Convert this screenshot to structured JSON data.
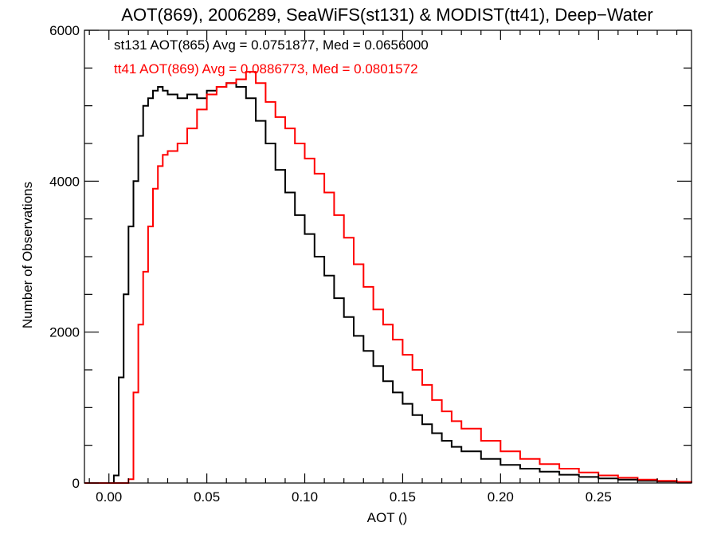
{
  "chart_data": {
    "type": "line",
    "title": "AOT(869), 2006289, SeaWiFS(st131) & MODIST(tt41), Deep−Water",
    "xlabel": "AOT ()",
    "ylabel": "Number of Observations",
    "xlim": [
      -0.0125,
      0.2975
    ],
    "ylim": [
      0,
      6000
    ],
    "x_ticks": [
      0.0,
      0.05,
      0.1,
      0.15,
      0.2,
      0.25
    ],
    "x_tick_labels": [
      "0.00",
      "0.05",
      "0.10",
      "0.15",
      "0.20",
      "0.25"
    ],
    "y_ticks": [
      0,
      2000,
      4000,
      6000
    ],
    "y_tick_labels": [
      "0",
      "2000",
      "4000",
      "6000"
    ],
    "grid": false,
    "step": true,
    "annotations": [
      {
        "text": "st131 AOT(865) Avg = 0.0751877, Med = 0.0656000",
        "color": "#000000"
      },
      {
        "text": "tt41 AOT(869) Avg = 0.0886773, Med = 0.0801572",
        "color": "#ff0000"
      }
    ],
    "series": [
      {
        "color": "#000000",
        "x": [
          -0.0125,
          0.0,
          0.0025,
          0.005,
          0.0075,
          0.01,
          0.0125,
          0.015,
          0.0175,
          0.02,
          0.0225,
          0.025,
          0.0275,
          0.03,
          0.035,
          0.04,
          0.045,
          0.05,
          0.055,
          0.06,
          0.065,
          0.07,
          0.075,
          0.08,
          0.085,
          0.09,
          0.095,
          0.1,
          0.105,
          0.11,
          0.115,
          0.12,
          0.125,
          0.13,
          0.135,
          0.14,
          0.145,
          0.15,
          0.155,
          0.16,
          0.165,
          0.17,
          0.175,
          0.18,
          0.19,
          0.2,
          0.21,
          0.22,
          0.23,
          0.24,
          0.25,
          0.26,
          0.27,
          0.28,
          0.29,
          0.2975
        ],
        "y": [
          0,
          0,
          100,
          1400,
          2500,
          3400,
          4000,
          4600,
          5000,
          5100,
          5200,
          5250,
          5200,
          5150,
          5100,
          5150,
          5100,
          5200,
          5250,
          5300,
          5250,
          5100,
          4800,
          4500,
          4150,
          3850,
          3550,
          3300,
          3000,
          2750,
          2450,
          2200,
          1950,
          1750,
          1550,
          1350,
          1200,
          1050,
          900,
          780,
          660,
          560,
          480,
          420,
          320,
          240,
          190,
          150,
          110,
          80,
          60,
          45,
          30,
          20,
          10,
          0
        ]
      },
      {
        "color": "#ff0000",
        "x": [
          -0.0125,
          0.0,
          0.005,
          0.01,
          0.0125,
          0.015,
          0.0175,
          0.02,
          0.0225,
          0.025,
          0.0275,
          0.03,
          0.035,
          0.04,
          0.045,
          0.05,
          0.055,
          0.06,
          0.065,
          0.07,
          0.075,
          0.08,
          0.085,
          0.09,
          0.095,
          0.1,
          0.105,
          0.11,
          0.115,
          0.12,
          0.125,
          0.13,
          0.135,
          0.14,
          0.145,
          0.15,
          0.155,
          0.16,
          0.165,
          0.17,
          0.175,
          0.18,
          0.19,
          0.2,
          0.21,
          0.22,
          0.23,
          0.24,
          0.25,
          0.26,
          0.27,
          0.28,
          0.29,
          0.2975
        ],
        "y": [
          0,
          0,
          0,
          50,
          1200,
          2100,
          2800,
          3400,
          3900,
          4200,
          4350,
          4400,
          4500,
          4700,
          4950,
          5150,
          5250,
          5300,
          5350,
          5450,
          5300,
          5050,
          4850,
          4700,
          4500,
          4300,
          4100,
          3850,
          3550,
          3250,
          2900,
          2600,
          2300,
          2100,
          1900,
          1700,
          1500,
          1300,
          1100,
          950,
          820,
          720,
          560,
          420,
          320,
          250,
          190,
          140,
          100,
          70,
          45,
          30,
          15,
          0
        ]
      }
    ]
  }
}
